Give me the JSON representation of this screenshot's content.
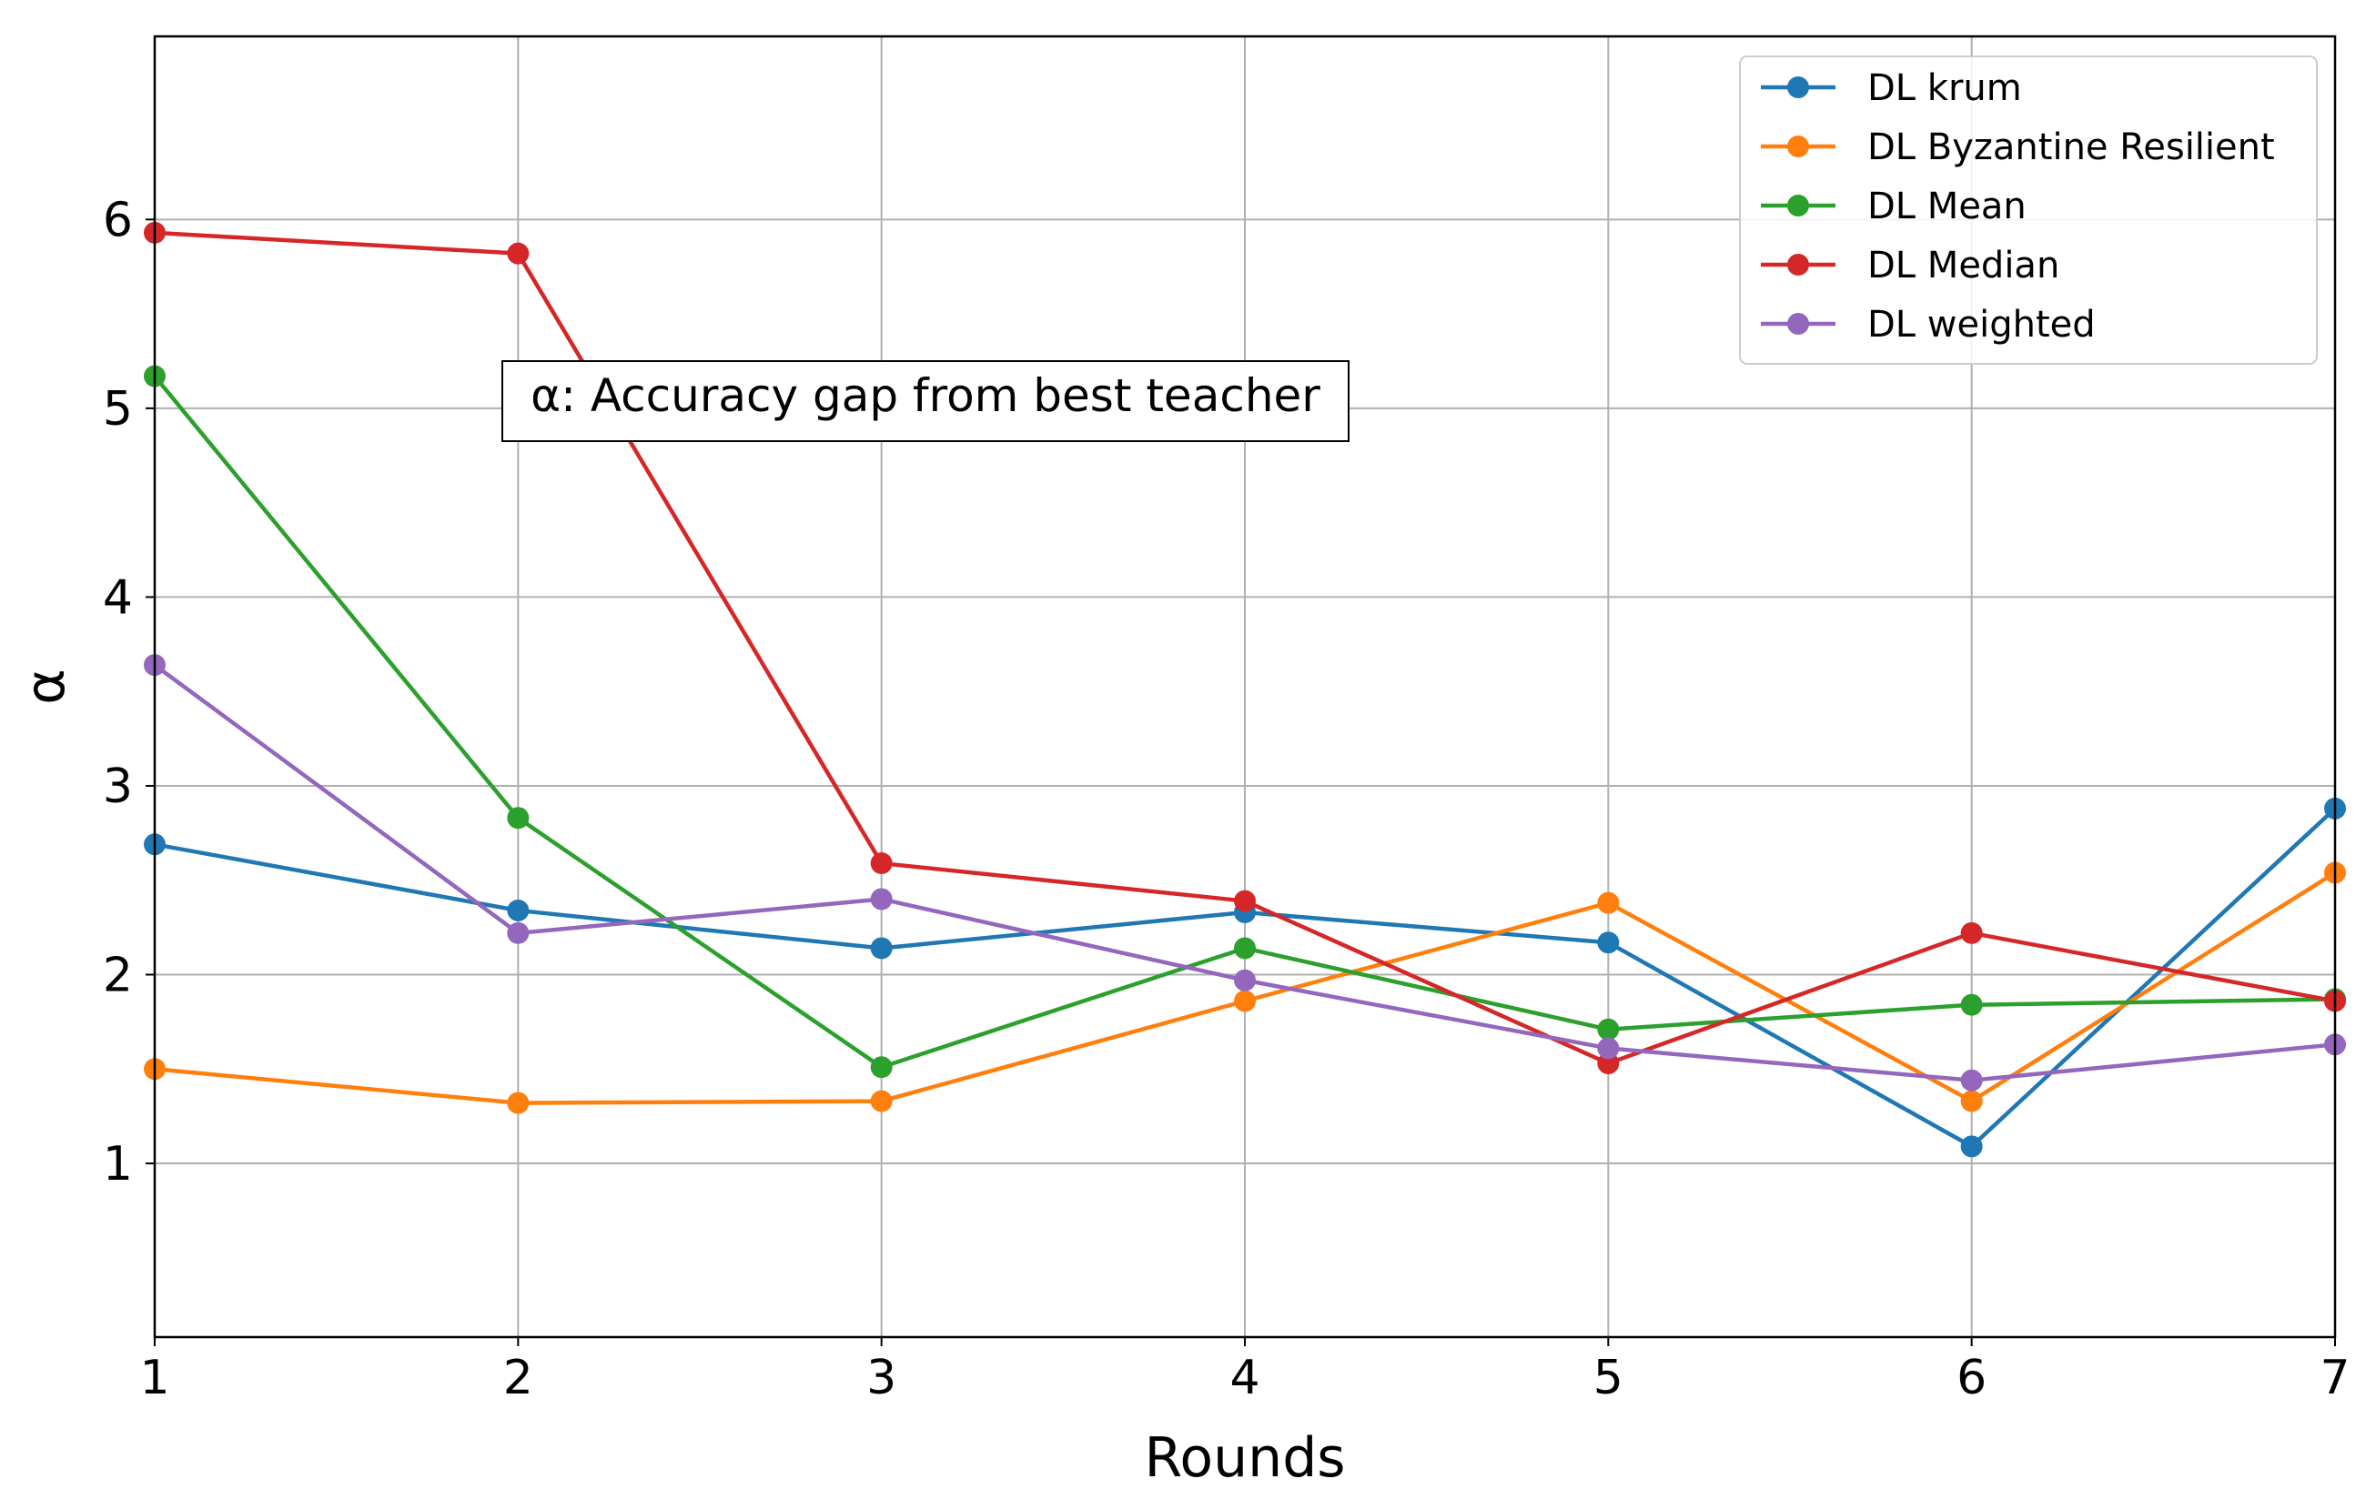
{
  "chart_data": {
    "type": "line",
    "title": "",
    "xlabel": "Rounds",
    "ylabel": "α",
    "x": [
      1,
      2,
      3,
      4,
      5,
      6,
      7
    ],
    "xlim": [
      1,
      7
    ],
    "ylim": [
      0.08,
      6.97
    ],
    "xticks": [
      1,
      2,
      3,
      4,
      5,
      6,
      7
    ],
    "yticks": [
      1,
      2,
      3,
      4,
      5,
      6
    ],
    "grid": true,
    "legend_position": "top-right",
    "annotation": "α: Accuracy gap from best teacher",
    "series": [
      {
        "name": "DL krum",
        "color": "#1f77b4",
        "values": [
          2.69,
          2.34,
          2.14,
          2.33,
          2.17,
          1.09,
          2.88
        ]
      },
      {
        "name": "DL Byzantine Resilient",
        "color": "#ff7f0e",
        "values": [
          1.5,
          1.32,
          1.33,
          1.86,
          2.38,
          1.33,
          2.54
        ]
      },
      {
        "name": "DL Mean",
        "color": "#2ca02c",
        "values": [
          5.17,
          2.83,
          1.51,
          2.14,
          1.71,
          1.84,
          1.87
        ]
      },
      {
        "name": "DL Median",
        "color": "#d62728",
        "values": [
          5.93,
          5.82,
          2.59,
          2.39,
          1.53,
          2.22,
          1.86
        ]
      },
      {
        "name": "DL weighted",
        "color": "#9467bd",
        "values": [
          3.64,
          2.22,
          2.4,
          1.97,
          1.61,
          1.44,
          1.63
        ]
      }
    ]
  }
}
